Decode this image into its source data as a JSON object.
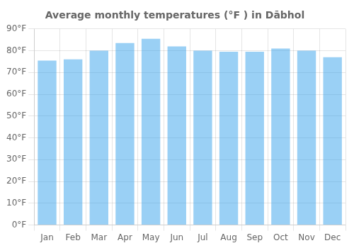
{
  "chart_data": {
    "type": "bar",
    "title": "Average monthly temperatures (°F ) in Dābhol",
    "categories": [
      "Jan",
      "Feb",
      "Mar",
      "Apr",
      "May",
      "Jun",
      "Jul",
      "Aug",
      "Sep",
      "Oct",
      "Nov",
      "Dec"
    ],
    "values": [
      75.5,
      76.0,
      80.0,
      83.5,
      85.5,
      82.0,
      80.0,
      79.5,
      79.5,
      81.0,
      80.0,
      77.0
    ],
    "ylim": [
      0,
      90
    ],
    "yticks": [
      {
        "value": 0,
        "label": "0°F"
      },
      {
        "value": 10,
        "label": "10°F"
      },
      {
        "value": 20,
        "label": "20°F"
      },
      {
        "value": 30,
        "label": "30°F"
      },
      {
        "value": 40,
        "label": "40°F"
      },
      {
        "value": 50,
        "label": "50°F"
      },
      {
        "value": 60,
        "label": "60°F"
      },
      {
        "value": 70,
        "label": "70°F"
      },
      {
        "value": 80,
        "label": "80°F"
      },
      {
        "value": 90,
        "label": "90°F"
      }
    ],
    "grid": true
  }
}
